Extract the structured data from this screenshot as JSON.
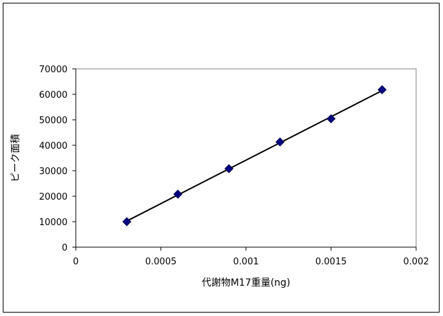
{
  "chart_data": {
    "type": "scatter",
    "title": "",
    "xlabel": "代謝物M17重量(ng)",
    "ylabel": "ピーク面積",
    "xlim": [
      0,
      0.002
    ],
    "ylim": [
      0,
      70000
    ],
    "x_ticks": [
      "0",
      "0.0005",
      "0.001",
      "0.0015",
      "0.002"
    ],
    "y_ticks": [
      "0",
      "10000",
      "20000",
      "30000",
      "40000",
      "50000",
      "60000",
      "70000"
    ],
    "grid": false,
    "legend": "none",
    "series": [
      {
        "marker": "diamond",
        "color": "#000080",
        "trendline": "linear",
        "x": [
          0.0003,
          0.0006,
          0.0009,
          0.0012,
          0.0015,
          0.0018
        ],
        "y": [
          10000,
          20800,
          30800,
          41300,
          50400,
          61800
        ]
      }
    ]
  }
}
